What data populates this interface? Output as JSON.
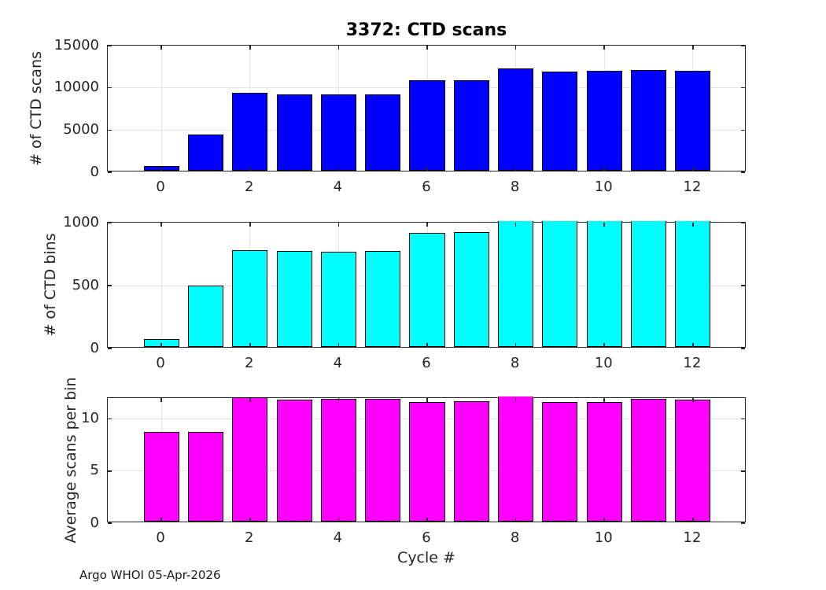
{
  "figure": {
    "title": "3372: CTD scans",
    "xlabel": "Cycle #",
    "footer": "Argo WHOI 05-Apr-2026"
  },
  "style": {
    "grid_color": "#E6E6E6",
    "axis_color": "#262626",
    "bar_edge_color": "#000000",
    "tick_text_color": "#262626",
    "blue": "#0000FF",
    "cyan": "#00FFFF",
    "magenta": "#FF00FF"
  },
  "chart_data": [
    {
      "type": "bar",
      "name": "ctd-scans",
      "title": "3372: CTD scans",
      "ylabel": "# of CTD scans",
      "bar_color": "#0000FF",
      "categories": [
        0,
        1,
        2,
        3,
        4,
        5,
        6,
        7,
        8,
        9,
        10,
        11,
        12
      ],
      "values": [
        550,
        4300,
        9200,
        9000,
        9050,
        9050,
        10700,
        10750,
        12100,
        11700,
        11800,
        11950,
        11850
      ],
      "ylim": [
        0,
        15000
      ],
      "yticks": [
        0,
        5000,
        10000,
        15000
      ],
      "xlim": [
        -1.21,
        13.21
      ],
      "xticks": [
        0,
        2,
        4,
        6,
        8,
        10,
        12
      ],
      "bar_width": 0.8,
      "grid": true,
      "clip_to_ylim": true
    },
    {
      "type": "bar",
      "name": "ctd-bins",
      "ylabel": "# of CTD bins",
      "bar_color": "#00FFFF",
      "categories": [
        0,
        1,
        2,
        3,
        4,
        5,
        6,
        7,
        8,
        9,
        10,
        11,
        12
      ],
      "values": [
        60,
        490,
        770,
        760,
        755,
        760,
        905,
        915,
        1010,
        1005,
        1010,
        1010,
        1005
      ],
      "ylim": [
        0,
        1000
      ],
      "yticks": [
        0,
        500,
        1000
      ],
      "xlim": [
        -1.21,
        13.21
      ],
      "xticks": [
        0,
        2,
        4,
        6,
        8,
        10,
        12
      ],
      "bar_width": 0.8,
      "grid": true,
      "clip_to_ylim": true
    },
    {
      "type": "bar",
      "name": "avg-scans-per-bin",
      "ylabel": "Average scans per bin",
      "xlabel": "Cycle #",
      "bar_color": "#FF00FF",
      "categories": [
        0,
        1,
        2,
        3,
        4,
        5,
        6,
        7,
        8,
        9,
        10,
        11,
        12
      ],
      "values": [
        8.6,
        8.6,
        11.9,
        11.7,
        11.75,
        11.75,
        11.45,
        11.55,
        12.05,
        11.5,
        11.5,
        11.75,
        11.7
      ],
      "ylim": [
        0,
        12
      ],
      "yticks": [
        0,
        5,
        10
      ],
      "xlim": [
        -1.21,
        13.21
      ],
      "xticks": [
        0,
        2,
        4,
        6,
        8,
        10,
        12
      ],
      "bar_width": 0.8,
      "grid": true,
      "clip_to_ylim": true
    }
  ]
}
